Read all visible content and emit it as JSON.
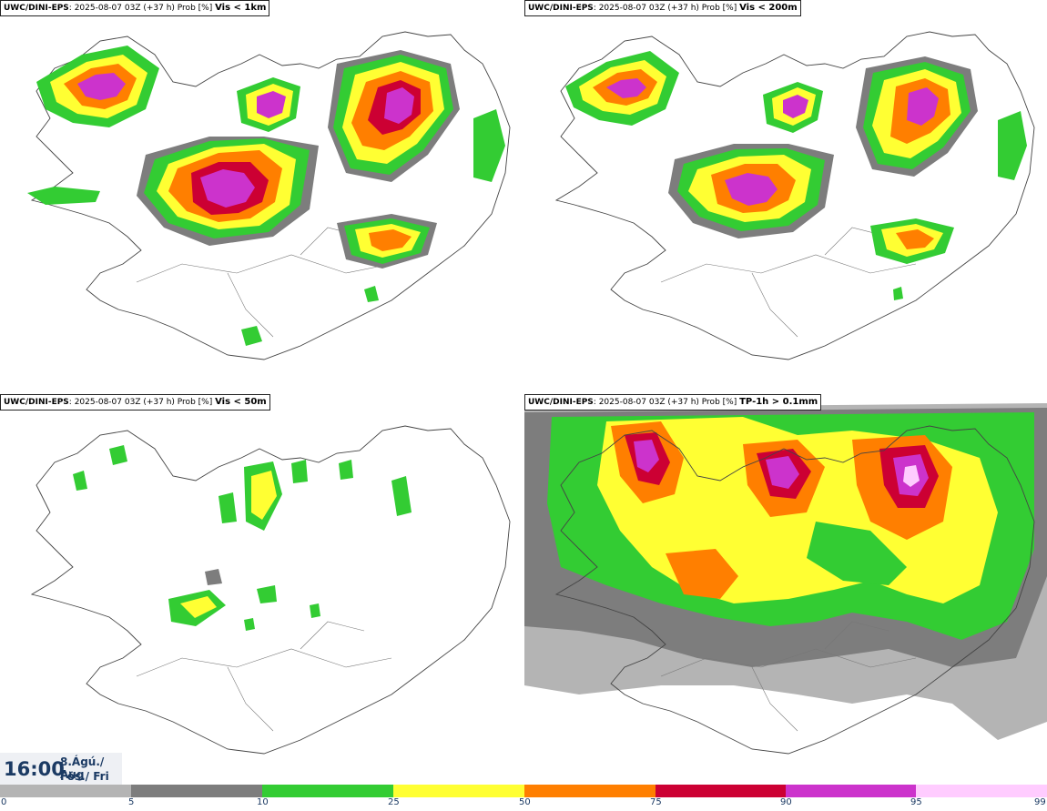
{
  "panels": [
    {
      "model": "UWC/DINI-EPS",
      "meta": "2025-08-07 03Z (+37 h) Prob [%]",
      "variable": "Vis < 1km"
    },
    {
      "model": "UWC/DINI-EPS",
      "meta": "2025-08-07 03Z (+37 h) Prob [%]",
      "variable": "Vis < 200m"
    },
    {
      "model": "UWC/DINI-EPS",
      "meta": "2025-08-07 03Z (+37 h) Prob [%]",
      "variable": "Vis < 50m"
    },
    {
      "model": "UWC/DINI-EPS",
      "meta": "2025-08-07 03Z (+37 h) Prob [%]",
      "variable": "TP-1h > 0.1mm"
    }
  ],
  "valid": {
    "time": "16:00",
    "date_line": "8.Ágú./ Aug",
    "day_line": "Fös./ Fri"
  },
  "colorbar": {
    "ticks": [
      "0",
      "5",
      "10",
      "25",
      "50",
      "75",
      "90",
      "95",
      "99"
    ],
    "colors": [
      "#ffffff",
      "#b4b4b4",
      "#7d7d7d",
      "#33cc33",
      "#ffff33",
      "#ff7f00",
      "#cc0033",
      "#cc33cc",
      "#ffccff"
    ]
  }
}
